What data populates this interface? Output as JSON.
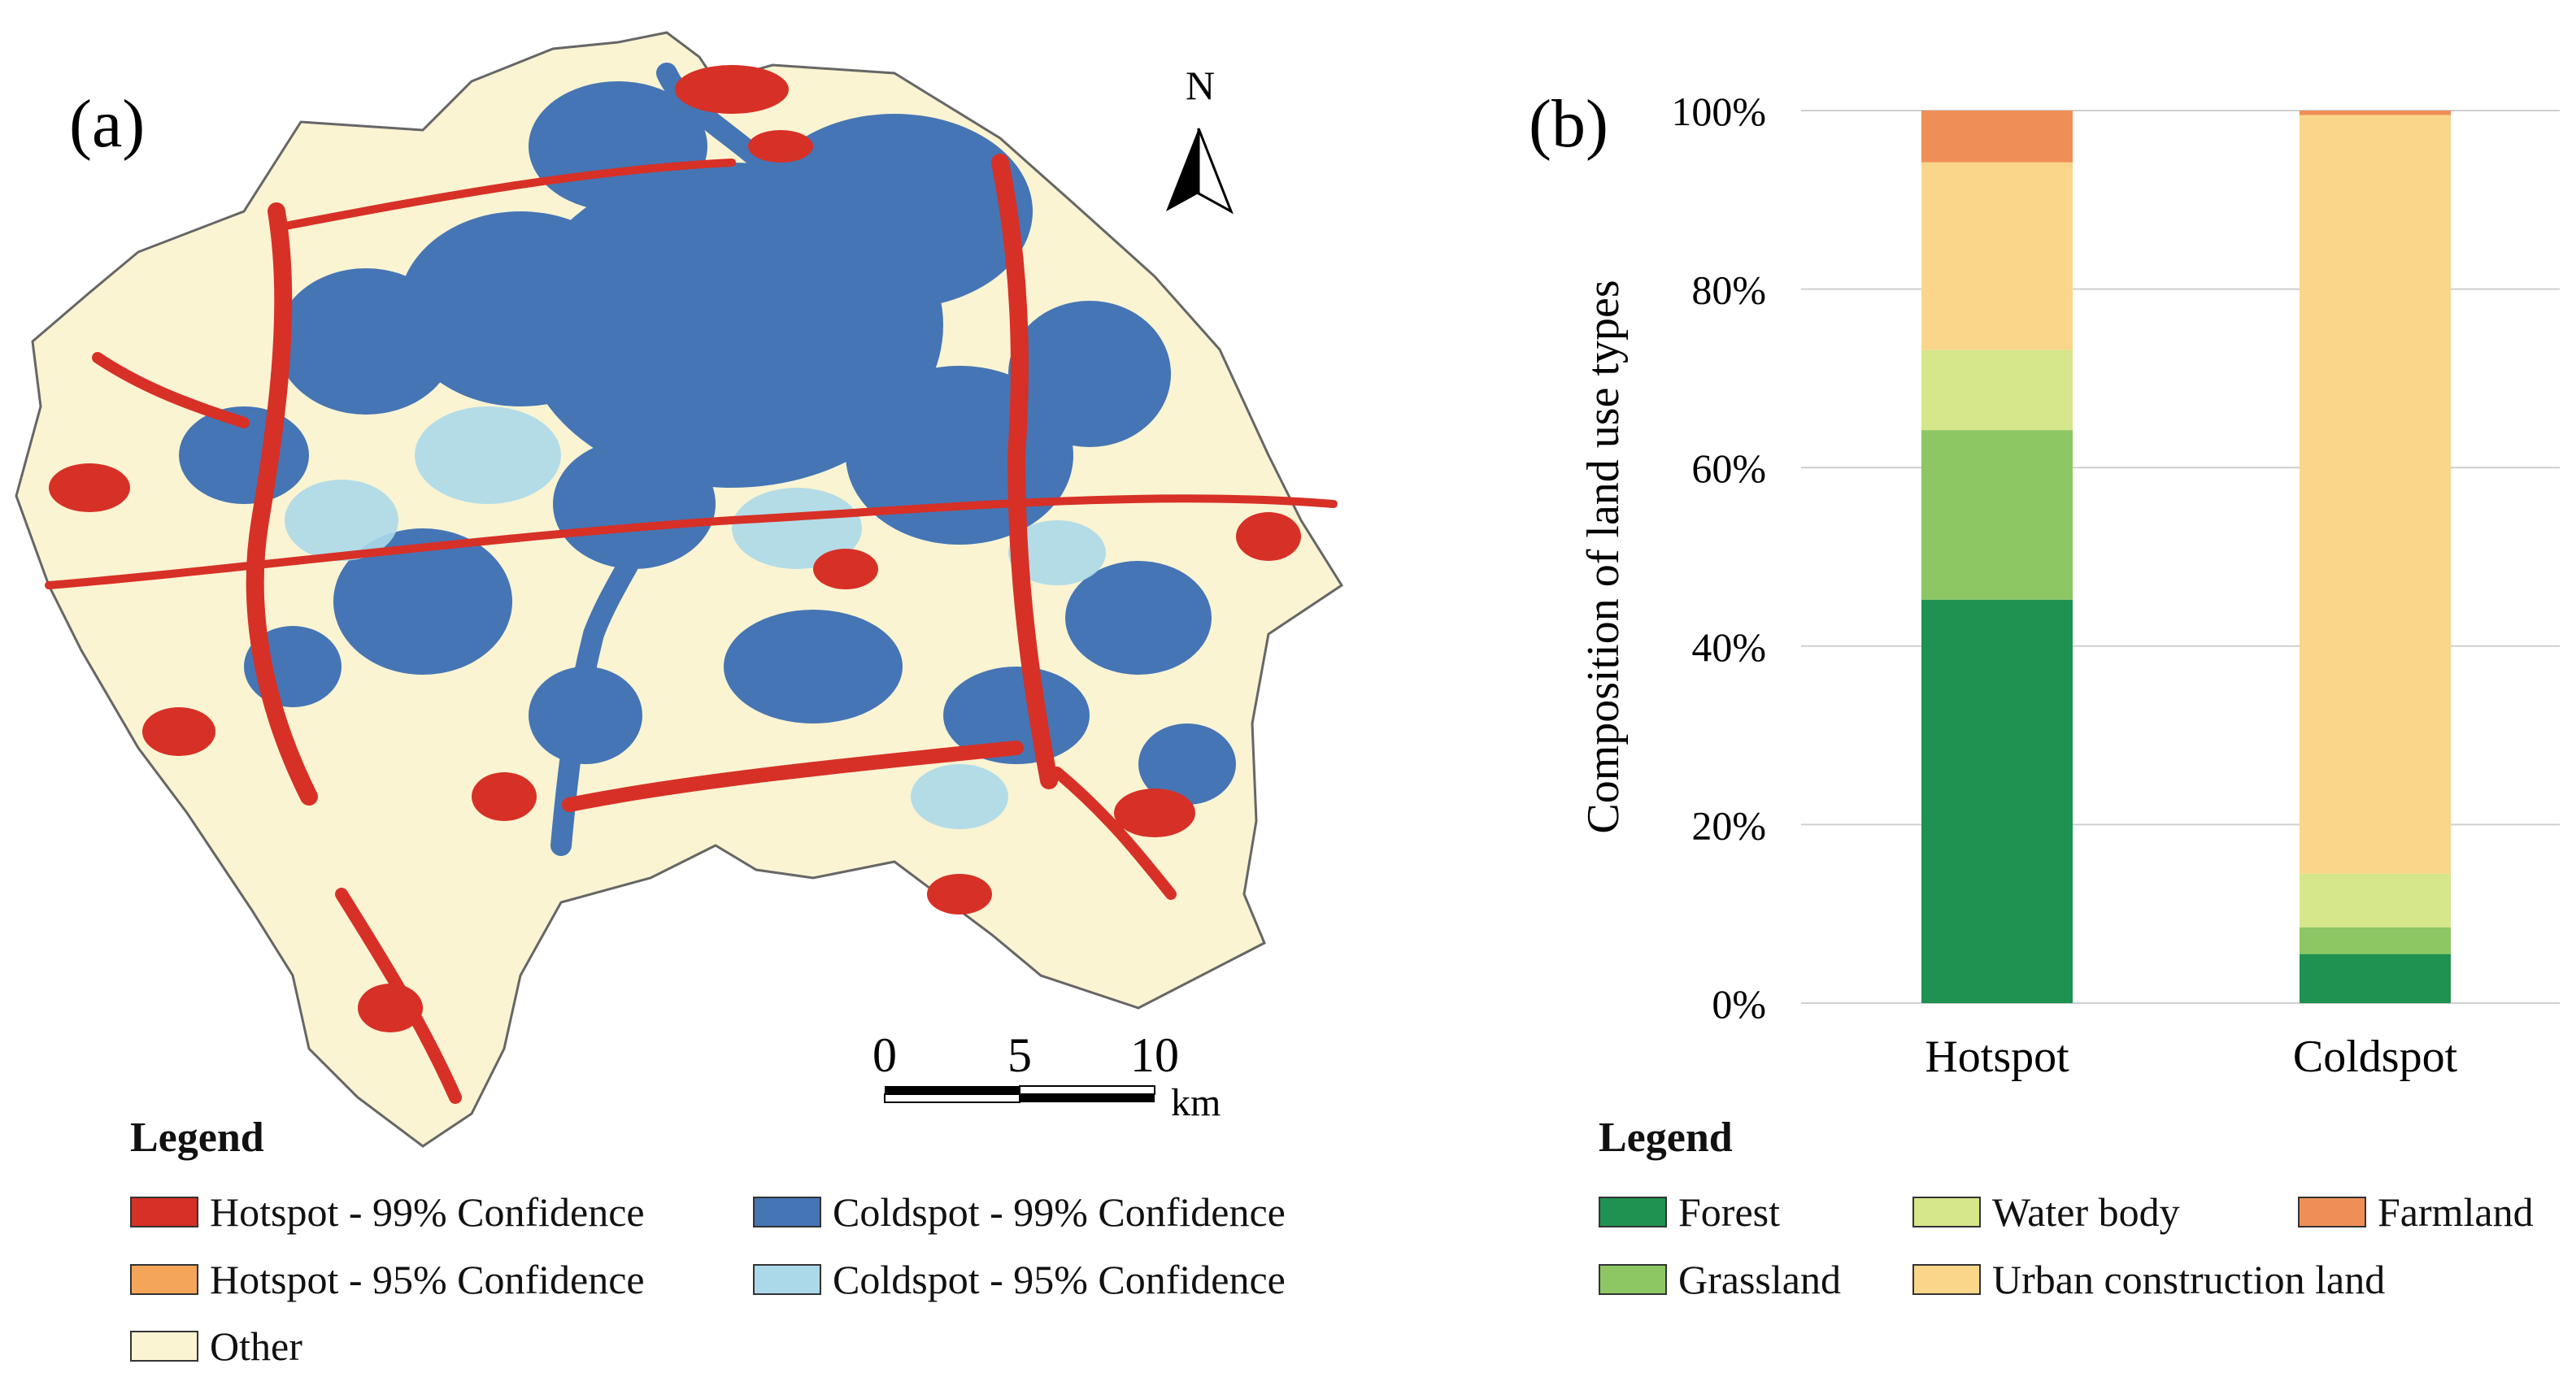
{
  "panel_a": {
    "label": "(a)",
    "north_label": "N",
    "scale": {
      "ticks": [
        "0",
        "5",
        "10"
      ],
      "unit": "km"
    },
    "legend": {
      "title": "Legend",
      "items": [
        {
          "label": "Hotspot - 99% Confidence",
          "color": "#d73027"
        },
        {
          "label": "Coldspot - 99% Confidence",
          "color": "#4575b4"
        },
        {
          "label": "Hotspot - 95% Confidence",
          "color": "#f4a55a"
        },
        {
          "label": "Coldspot - 95% Confidence",
          "color": "#abd9e9"
        },
        {
          "label": "Other",
          "color": "#faf4d3"
        }
      ]
    }
  },
  "panel_b": {
    "label": "(b)",
    "legend": {
      "title": "Legend",
      "items": [
        {
          "label": "Forest",
          "color": "#1f9150"
        },
        {
          "label": "Water body",
          "color": "#d6e68a"
        },
        {
          "label": "Farmland",
          "color": "#ef8f57"
        },
        {
          "label": "Grassland",
          "color": "#8cc764"
        },
        {
          "label": "Urban construction land",
          "color": "#fad68a"
        }
      ]
    }
  },
  "chart_data": {
    "type": "bar",
    "stacked": true,
    "categories": [
      "Hotspot",
      "Coldspot"
    ],
    "series": [
      {
        "name": "Forest",
        "color": "#1f9150",
        "values": [
          45.2,
          5.5
        ]
      },
      {
        "name": "Grassland",
        "color": "#8cc764",
        "values": [
          19.0,
          3.0
        ]
      },
      {
        "name": "Water body",
        "color": "#d6e68a",
        "values": [
          9.0,
          6.0
        ]
      },
      {
        "name": "Urban construction land",
        "color": "#fad68a",
        "values": [
          21.0,
          85.0
        ]
      },
      {
        "name": "Farmland",
        "color": "#ef8f57",
        "values": [
          5.8,
          0.5
        ]
      }
    ],
    "ylabel": "Composition of land use types",
    "xlabel": "",
    "ylim": [
      0,
      100
    ],
    "yticks": [
      "0%",
      "20%",
      "40%",
      "60%",
      "80%",
      "100%"
    ],
    "grid": true
  }
}
